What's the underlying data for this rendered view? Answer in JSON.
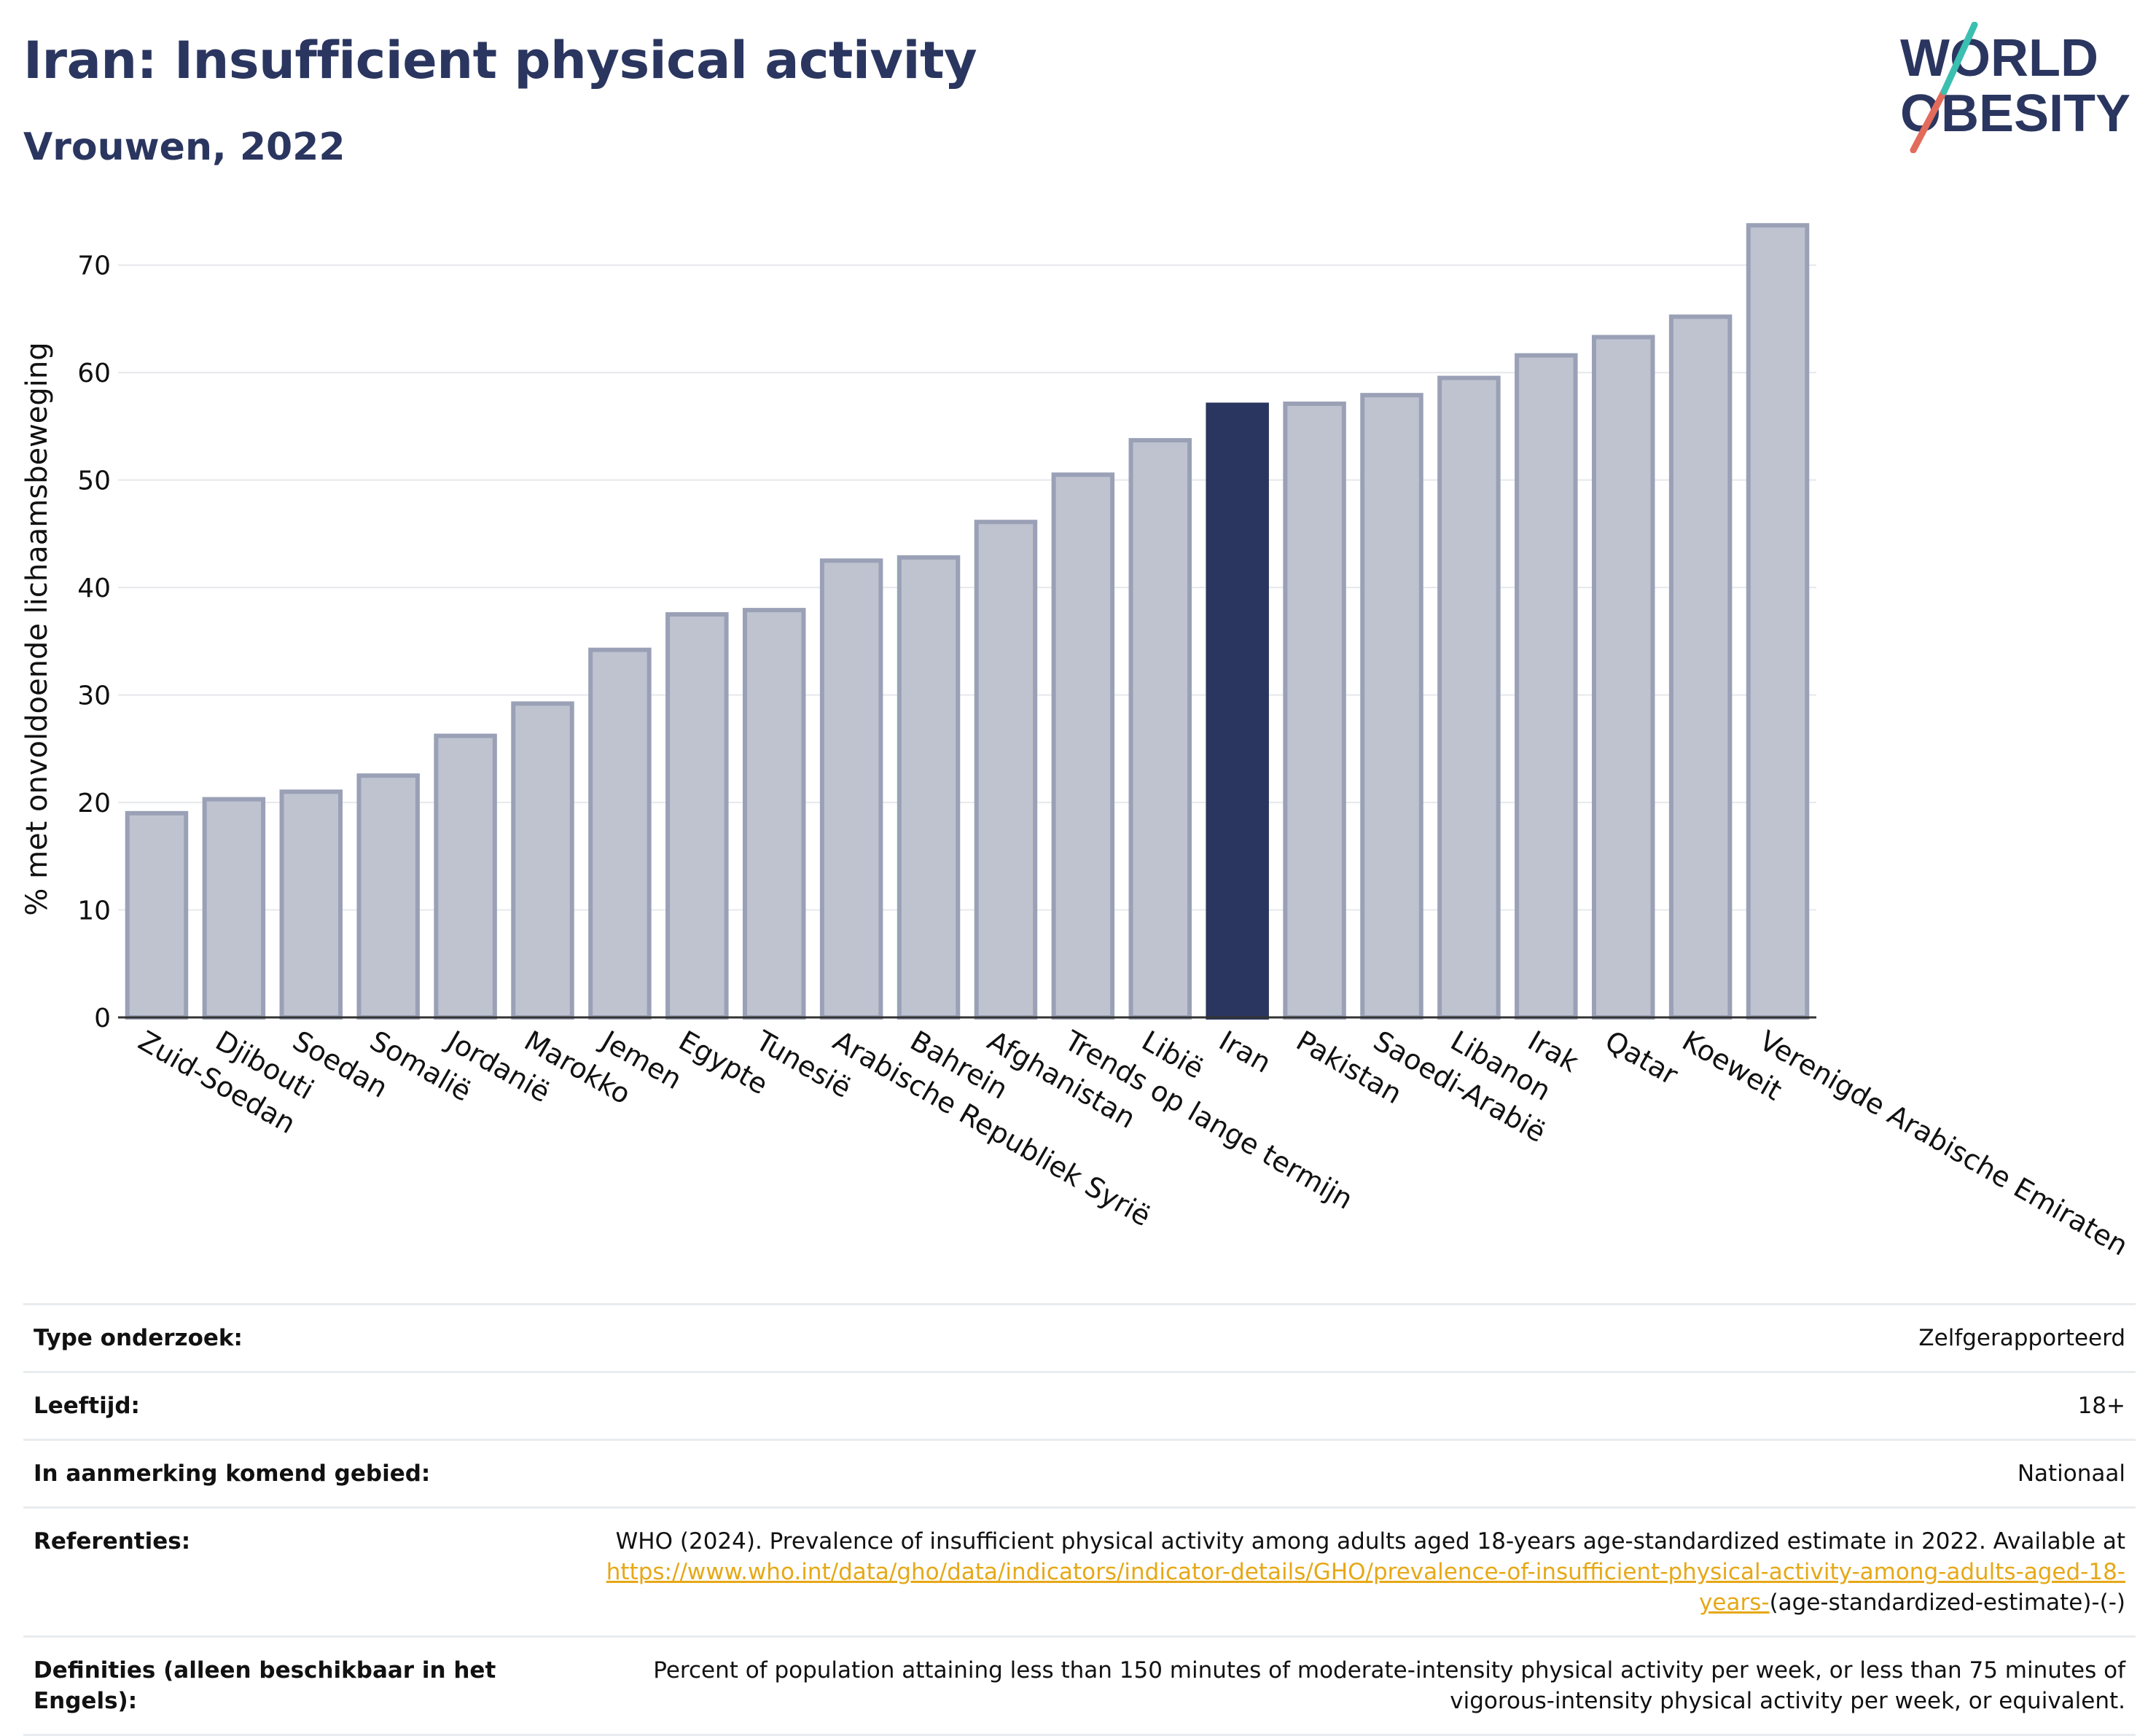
{
  "header": {
    "title": "Iran: Insufficient physical activity",
    "subtitle": "Vrouwen, 2022"
  },
  "logo": {
    "line1": "WORLD",
    "line2": "OBESITY"
  },
  "colors": {
    "accent": "#2a365f",
    "bar": "#bfc3d0",
    "bar_edge": "#9aa1b6",
    "grid": "#e6e8ec",
    "link": "#e6a817"
  },
  "chart_data": {
    "type": "bar",
    "ylabel": "% met onvoldoende lichaamsbeweging",
    "ylim": [
      0,
      75
    ],
    "yticks": [
      0,
      10,
      20,
      30,
      40,
      50,
      60,
      70
    ],
    "grid": true,
    "highlight": "Iran",
    "categories": [
      "Zuid-Soedan",
      "Djibouti",
      "Soedan",
      "Somalië",
      "Jordanië",
      "Marokko",
      "Jemen",
      "Egypte",
      "Tunesië",
      "Arabische Republiek Syrië",
      "Bahrein",
      "Afghanistan",
      "Trends op lange termijn",
      "Libië",
      "Iran",
      "Pakistan",
      "Saoedi-Arabië",
      "Libanon",
      "Irak",
      "Qatar",
      "Koeweit",
      "Verenigde Arabische Emiraten"
    ],
    "values": [
      19.0,
      20.3,
      21.0,
      22.5,
      26.2,
      29.2,
      34.2,
      37.5,
      37.9,
      42.5,
      42.8,
      46.1,
      50.5,
      53.7,
      57.0,
      57.1,
      57.9,
      59.5,
      61.6,
      63.3,
      65.2,
      73.7
    ]
  },
  "info": {
    "rows": [
      {
        "label": "Type onderzoek:",
        "value": "Zelfgerapporteerd"
      },
      {
        "label": "Leeftijd:",
        "value": "18+"
      },
      {
        "label": "In aanmerking komend gebied:",
        "value": "Nationaal"
      }
    ],
    "references": {
      "label": "Referenties:",
      "text": "WHO (2024). Prevalence of insufficient physical activity among adults aged 18-years age-standardized estimate in 2022. Available at",
      "link": "https://www.who.int/data/gho/data/indicators/indicator-details/GHO/prevalence-of-insufficient-physical-activity-among-adults-aged-18-years-",
      "suffix": "(age-standardized-estimate)-(-)"
    },
    "definitions": {
      "label": "Definities (alleen beschikbaar in het Engels):",
      "value": "Percent of population attaining less than 150 minutes of moderate-intensity physical activity per week, or less than 75 minutes of vigorous-intensity physical activity per week, or equivalent."
    }
  }
}
